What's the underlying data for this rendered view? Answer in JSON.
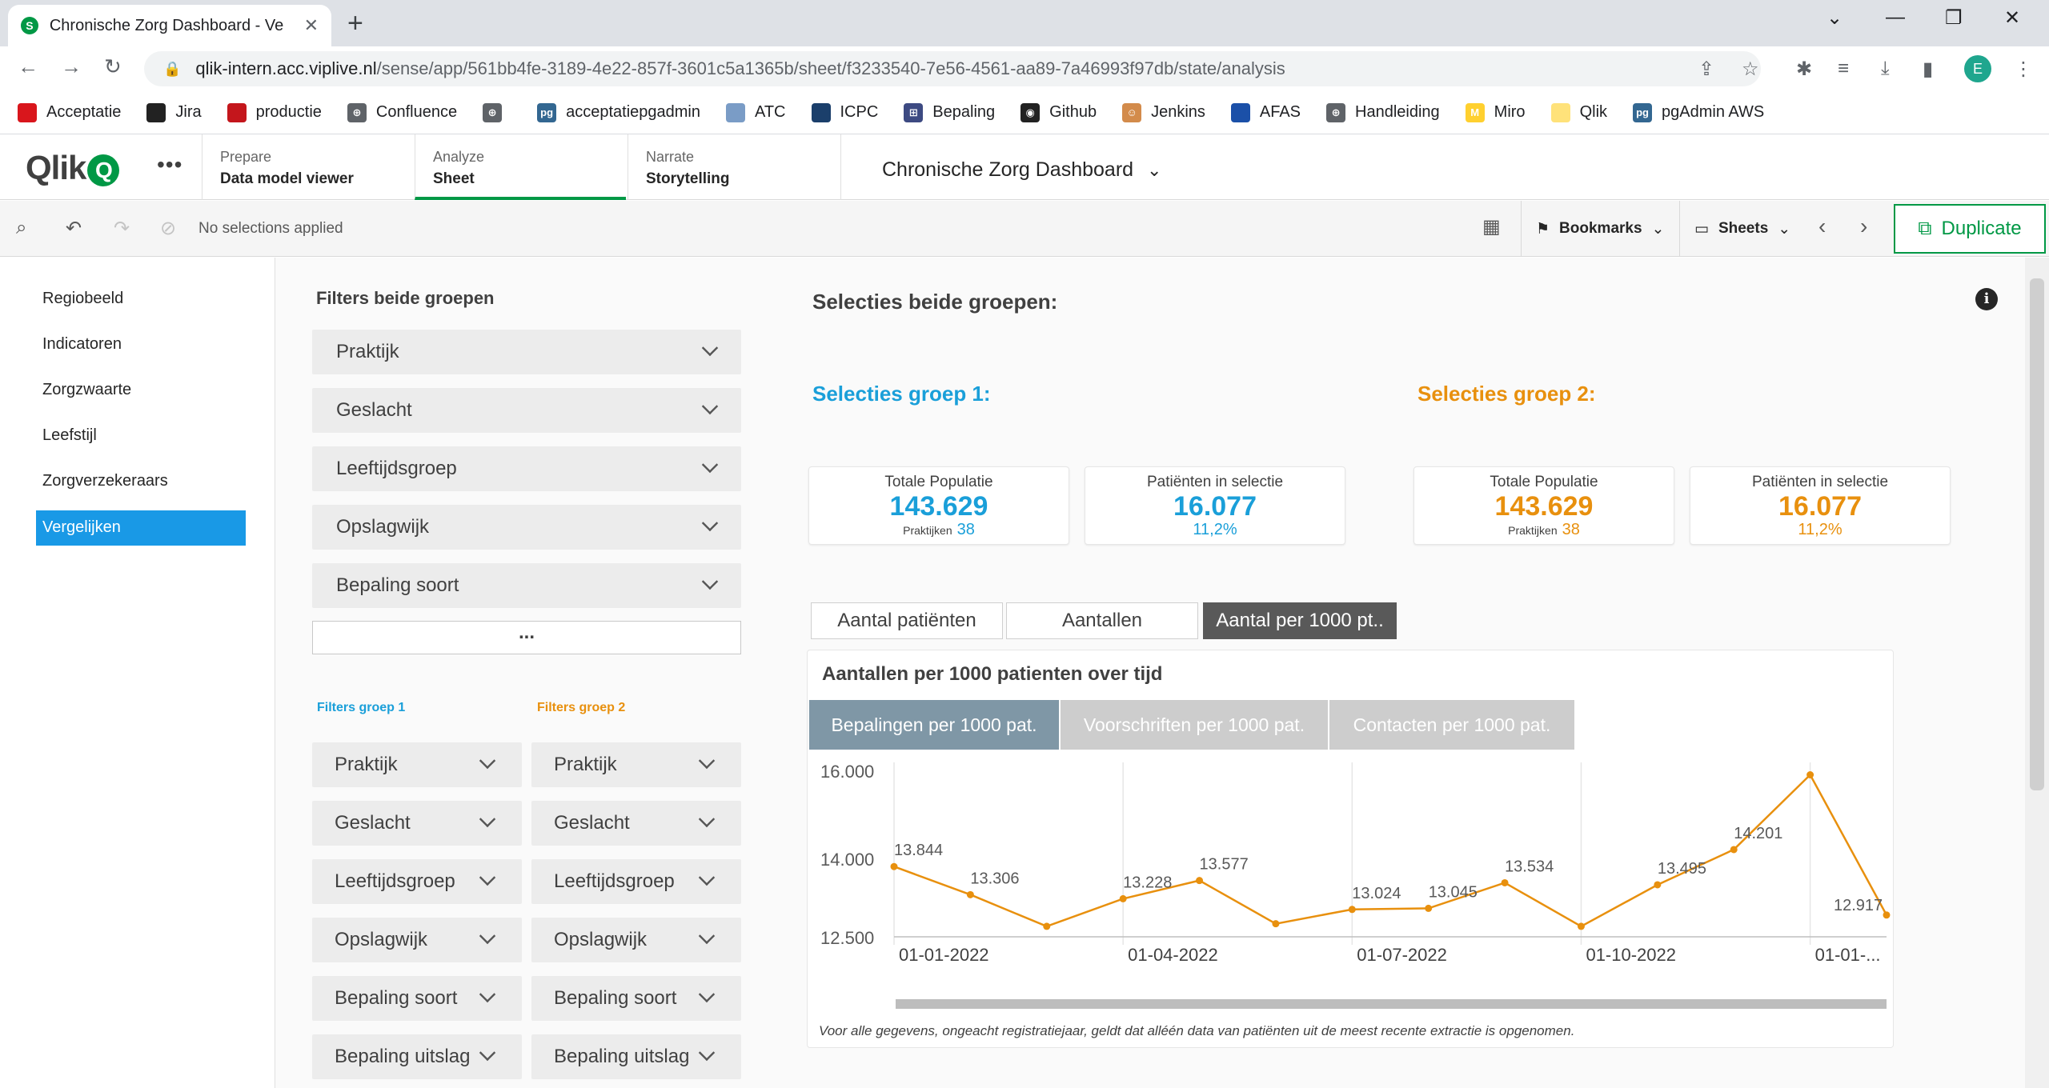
{
  "browser": {
    "tab_title": "Chronische Zorg Dashboard - Ve",
    "url_host": "qlik-intern.acc.viplive.nl",
    "url_path": "/sense/app/561bb4fe-3189-4e22-857f-3601c5a1365b/sheet/f3233540-7e56-4561-aa89-7a46993f97db/state/analysis",
    "profile_initial": "E",
    "bookmarks": [
      "Acceptatie",
      "Jira",
      "productie",
      "Confluence",
      "",
      "acceptatiepgadmin",
      "ATC",
      "ICPC",
      "Bepaling",
      "Github",
      "Jenkins",
      "AFAS",
      "Handleiding",
      "Miro",
      "Qlik",
      "pgAdmin AWS"
    ],
    "bookmark_colors": [
      "#d9161c",
      "#222222",
      "#c4161c",
      "#5f6368",
      "#5f6368",
      "#336791",
      "#7a9cc6",
      "#1b3f6b",
      "#3d4a82",
      "#222222",
      "#d38b4b",
      "#1b50a8",
      "#5f6368",
      "#ffd02f",
      "#ffe27a",
      "#336791"
    ]
  },
  "qlik": {
    "logo": "Qlik",
    "nav": [
      {
        "small": "Prepare",
        "big": "Data model viewer"
      },
      {
        "small": "Analyze",
        "big": "Sheet"
      },
      {
        "small": "Narrate",
        "big": "Storytelling"
      }
    ],
    "app_title": "Chronische Zorg Dashboard",
    "no_selections": "No selections applied",
    "bookmarks_label": "Bookmarks",
    "sheets_label": "Sheets",
    "duplicate_label": "Duplicate"
  },
  "sheet_nav": [
    "Regiobeeld",
    "Indicatoren",
    "Zorgzwaarte",
    "Leefstijl",
    "Zorgverzekeraars",
    "Vergelijken"
  ],
  "filters": {
    "heading": "Filters beide groepen",
    "both": [
      "Praktijk",
      "Geslacht",
      "Leeftijdsgroep",
      "Opslagwijk",
      "Bepaling soort"
    ],
    "more": "...",
    "group1_label": "Filters groep 1",
    "group2_label": "Filters groep 2",
    "group1": [
      "Praktijk",
      "Geslacht",
      "Leeftijdsgroep",
      "Opslagwijk",
      "Bepaling soort",
      "Bepaling uitslag"
    ],
    "group2": [
      "Praktijk",
      "Geslacht",
      "Leeftijdsgroep",
      "Opslagwijk",
      "Bepaling soort",
      "Bepaling uitslag"
    ]
  },
  "main": {
    "heading": "Selecties beide groepen:",
    "group1_heading": "Selecties groep 1:",
    "group2_heading": "Selecties groep 2:",
    "color_group1": "#1a9fd9",
    "color_group2": "#e8900e",
    "kpis": [
      {
        "label": "Totale Populatie",
        "value": "143.629",
        "sub_label": "Praktijken",
        "sub_value": "38"
      },
      {
        "label": "Patiënten in selectie",
        "value": "16.077",
        "sub_label": "",
        "sub_value": "11,2%"
      },
      {
        "label": "Totale Populatie",
        "value": "143.629",
        "sub_label": "Praktijken",
        "sub_value": "38"
      },
      {
        "label": "Patiënten in selectie",
        "value": "16.077",
        "sub_label": "",
        "sub_value": "11,2%"
      }
    ],
    "view_tabs": [
      "Aantal patiënten",
      "Aantallen",
      "Aantal per 1000 pt.."
    ],
    "chart_title": "Aantallen per 1000 patienten over tijd",
    "chart_tabs": [
      "Bepalingen per 1000 pat.",
      "Voorschriften per 1000 pat.",
      "Contacten per 1000 pat."
    ],
    "footnote": "Voor alle gegevens, ongeacht registratiejaar, geldt dat alléén data van patiënten uit de meest recente extractie is opgenomen."
  },
  "chart_data": {
    "type": "line",
    "x": [
      "2022-01",
      "2022-02",
      "2022-03",
      "2022-04",
      "2022-05",
      "2022-06",
      "2022-07",
      "2022-08",
      "2022-09",
      "2022-10",
      "2022-11",
      "2022-12",
      "2023-01",
      "2023-02"
    ],
    "series": [
      {
        "values": [
          13844,
          13306,
          12700,
          13228,
          13577,
          12750,
          13024,
          13045,
          13534,
          12700,
          13495,
          14201,
          15900,
          12917
        ]
      }
    ],
    "data_labels": [
      "13.844",
      "13.306",
      "",
      "13.228",
      "13.577",
      "",
      "13.024",
      "13.045",
      "13.534",
      "",
      "13.495",
      "14.201",
      "",
      "12.917"
    ],
    "x_tick_labels": [
      "01-01-2022",
      "01-04-2022",
      "01-07-2022",
      "01-10-2022",
      "01-01-..."
    ],
    "x_tick_index": [
      0,
      3,
      6,
      9,
      12
    ],
    "y_tick_labels": [
      "16.000",
      "14.000",
      "12.500"
    ],
    "y_tick_values": [
      16000,
      14000,
      12500
    ],
    "ylim": [
      12500,
      16000
    ],
    "line_color": "#e8900e",
    "grid": true
  }
}
